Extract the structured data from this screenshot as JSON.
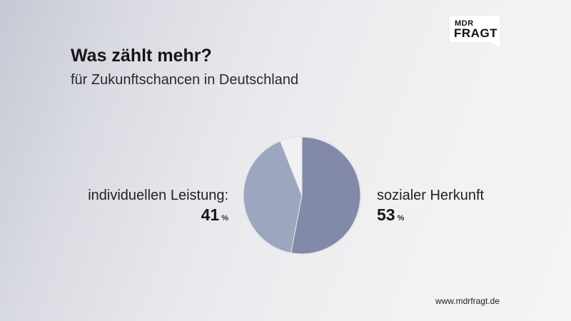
{
  "logo": {
    "line1": "MDR",
    "line2": "FRAGT"
  },
  "header": {
    "title": "Was zählt mehr?",
    "subtitle": "für Zukunftschancen in Deutschland"
  },
  "colors": {
    "slice_herkunft": "#8389a8",
    "slice_leistung": "#9da6bf",
    "slice_rest": "#f1f1f3",
    "pie_outline": "#e8e8ec"
  },
  "chart_data": {
    "type": "pie",
    "slices": [
      {
        "label": "sozialer Herkunft",
        "value": 53,
        "unit": "%",
        "color": "#8389a8"
      },
      {
        "label": "individuellen Leistung:",
        "value": 41,
        "unit": "%",
        "color": "#9da6bf"
      },
      {
        "label": "",
        "value": 6,
        "unit": "%",
        "color": "#f1f1f3"
      }
    ]
  },
  "labels": {
    "left": {
      "text": "individuellen Leistung:",
      "value": "41",
      "unit": "%"
    },
    "right": {
      "text": "sozialer Herkunft",
      "value": "53",
      "unit": "%"
    }
  },
  "footer": {
    "url": "www.mdrfragt.de"
  }
}
